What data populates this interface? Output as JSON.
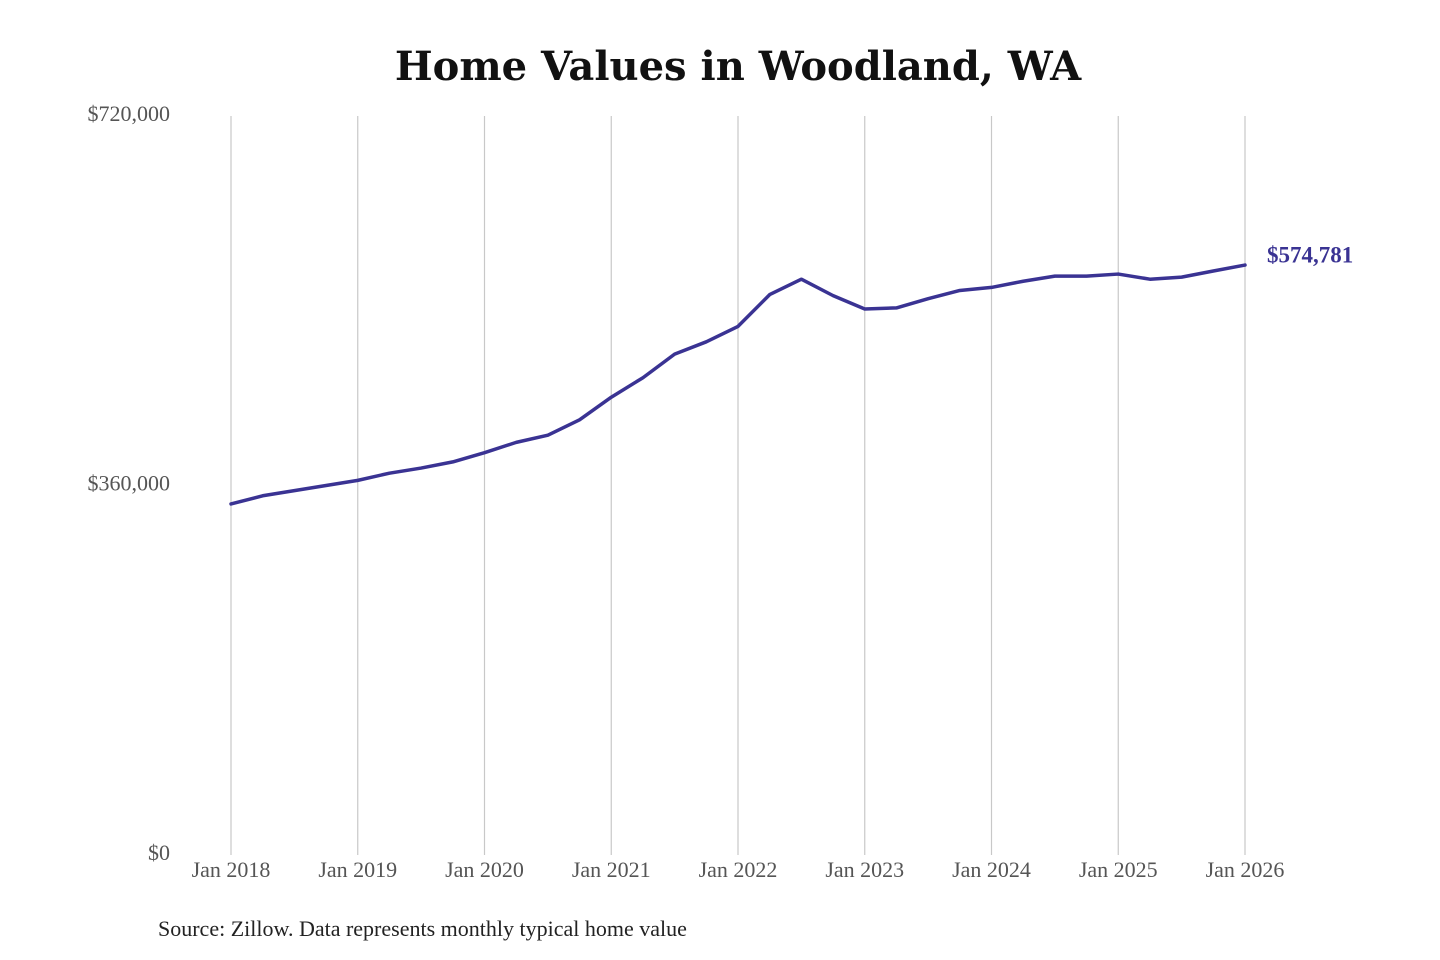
{
  "chart_data": {
    "type": "line",
    "title": "Home Values in Woodland, WA",
    "source": "Source: Zillow. Data represents monthly typical home value",
    "x": [
      "2018-01",
      "2018-04",
      "2018-07",
      "2018-10",
      "2019-01",
      "2019-04",
      "2019-07",
      "2019-10",
      "2020-01",
      "2020-04",
      "2020-07",
      "2020-10",
      "2021-01",
      "2021-04",
      "2021-07",
      "2021-10",
      "2022-01",
      "2022-04",
      "2022-07",
      "2022-10",
      "2023-01",
      "2023-04",
      "2023-07",
      "2023-10",
      "2024-01",
      "2024-04",
      "2024-07",
      "2024-10",
      "2025-01",
      "2025-04",
      "2025-07",
      "2025-10",
      "2026-01"
    ],
    "series": [
      {
        "color": "#3a3393",
        "values": [
          342000,
          350000,
          355000,
          360000,
          365000,
          372000,
          377000,
          383000,
          392000,
          402000,
          409000,
          424000,
          446000,
          465000,
          488000,
          500000,
          515000,
          546000,
          561000,
          545000,
          532000,
          533000,
          542000,
          550000,
          553000,
          559000,
          564000,
          564000,
          566000,
          561000,
          563000,
          569000,
          574781
        ],
        "value_labels": [
          null,
          null,
          null,
          null,
          null,
          null,
          null,
          null,
          null,
          null,
          null,
          null,
          null,
          null,
          null,
          null,
          null,
          null,
          null,
          null,
          null,
          null,
          null,
          null,
          null,
          null,
          null,
          null,
          null,
          null,
          null,
          null,
          "$574,781"
        ]
      }
    ],
    "xlim": [
      "2018-01",
      "2026-01"
    ],
    "xticks": [
      {
        "value": "2018-01",
        "label": "Jan 2018"
      },
      {
        "value": "2019-01",
        "label": "Jan 2019"
      },
      {
        "value": "2020-01",
        "label": "Jan 2020"
      },
      {
        "value": "2021-01",
        "label": "Jan 2021"
      },
      {
        "value": "2022-01",
        "label": "Jan 2022"
      },
      {
        "value": "2023-01",
        "label": "Jan 2023"
      },
      {
        "value": "2024-01",
        "label": "Jan 2024"
      },
      {
        "value": "2025-01",
        "label": "Jan 2025"
      },
      {
        "value": "2026-01",
        "label": "Jan 2026"
      }
    ],
    "ylim": [
      0,
      720000
    ],
    "yticks": [
      {
        "value": 0,
        "label": "$0"
      },
      {
        "value": 360000,
        "label": "$360,000"
      },
      {
        "value": 720000,
        "label": "$720,000"
      }
    ],
    "grid": "x"
  }
}
